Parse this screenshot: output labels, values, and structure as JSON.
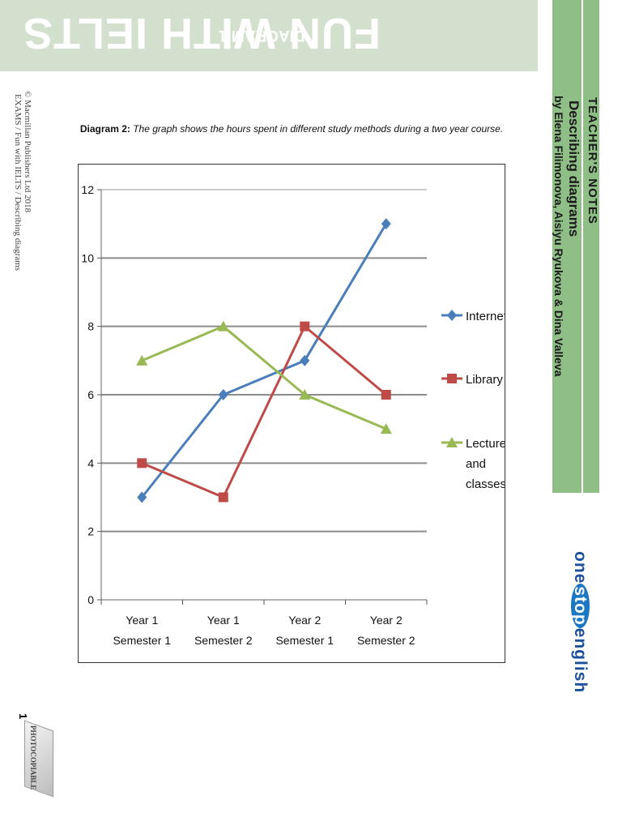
{
  "header": {
    "title": "FUN WITH IELTS",
    "subtitle": "DIAGRAM 1"
  },
  "side": {
    "notes_title": "TEACHER'S NOTES",
    "notes_subtitle": "Describing diagrams",
    "authors": "by Elena Filimonova, Aisiyu Ryukova & Dina Valleva",
    "logo_part1": "one",
    "logo_part2": "stop",
    "logo_part3": "english"
  },
  "footer": {
    "copyright_line1": "© Macmillan Publishers Ltd 2018",
    "copyright_line2": "EXAMS / Fun with IELTS / Describing diagrams",
    "page_number": "1",
    "photocopiable": "PHOTOCOPIABLE"
  },
  "caption": {
    "label": "Diagram 2:",
    "text": "The graph shows the hours spent in different study methods during a two year course."
  },
  "chart_data": {
    "type": "line",
    "title": "",
    "xlabel": "",
    "ylabel": "",
    "categories": [
      [
        "Year 1",
        "Semester 1"
      ],
      [
        "Year 1",
        "Semester 2"
      ],
      [
        "Year 2",
        "Semester 1"
      ],
      [
        "Year 2",
        "Semester 2"
      ]
    ],
    "ylim": [
      0,
      12
    ],
    "yticks": [
      "0",
      "2",
      "4",
      "6",
      "8",
      "10",
      "12"
    ],
    "grid": true,
    "legend_position": "right",
    "series": [
      {
        "name": "Internet",
        "values": [
          3,
          6,
          7,
          11
        ],
        "color": "#4a7ebb",
        "marker": "diamond",
        "legend_lines": [
          "Internet"
        ]
      },
      {
        "name": "Library",
        "values": [
          4,
          3,
          8,
          6
        ],
        "color": "#be4b48",
        "marker": "square",
        "legend_lines": [
          "Library"
        ]
      },
      {
        "name": "Lectures and classes",
        "values": [
          7,
          8,
          6,
          5
        ],
        "color": "#98b954",
        "marker": "triangle",
        "legend_lines": [
          "Lectures",
          "and",
          "classes"
        ]
      }
    ]
  }
}
